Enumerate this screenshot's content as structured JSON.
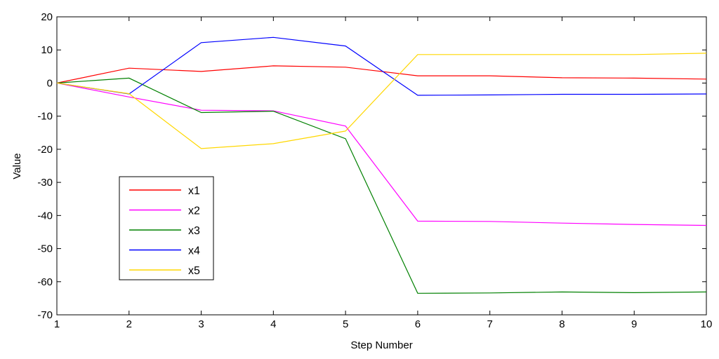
{
  "chart_data": {
    "type": "line",
    "xlabel": "Step Number",
    "ylabel": "Value",
    "xlim": [
      1,
      10
    ],
    "ylim": [
      -70,
      20
    ],
    "xticks": [
      1,
      2,
      3,
      4,
      5,
      6,
      7,
      8,
      9,
      10
    ],
    "yticks": [
      20,
      10,
      0,
      -10,
      -20,
      -30,
      -40,
      -50,
      -60,
      -70
    ],
    "grid": false,
    "legend_position": "lower-left",
    "series": [
      {
        "name": "x1",
        "color": "#ff0000",
        "x": [
          1,
          2,
          3,
          4,
          5,
          6,
          7,
          8,
          9,
          10
        ],
        "y": [
          0,
          4.5,
          3.5,
          5.2,
          4.8,
          2.2,
          2.2,
          1.6,
          1.5,
          1.2
        ]
      },
      {
        "name": "x2",
        "color": "#ff00ff",
        "x": [
          1,
          2,
          3,
          4,
          5,
          6,
          7,
          8,
          9,
          10
        ],
        "y": [
          0,
          -4.2,
          -8.2,
          -8.4,
          -13,
          -41.7,
          -41.8,
          -42.3,
          -42.7,
          -43
        ]
      },
      {
        "name": "x3",
        "color": "#008000",
        "x": [
          1,
          2,
          3,
          4,
          5,
          6,
          7,
          8,
          9,
          10
        ],
        "y": [
          0,
          1.5,
          -8.9,
          -8.5,
          -16.8,
          -63.5,
          -63.4,
          -63.1,
          -63.3,
          -63.1
        ]
      },
      {
        "name": "x4",
        "color": "#0000ff",
        "x": [
          1,
          2,
          3,
          4,
          5,
          6,
          7,
          8,
          9,
          10
        ],
        "y": [
          0,
          -3.3,
          12.2,
          13.8,
          11.2,
          -3.7,
          -3.6,
          -3.4,
          -3.4,
          -3.3
        ]
      },
      {
        "name": "x5",
        "color": "#ffd700",
        "x": [
          1,
          2,
          3,
          4,
          5,
          6,
          7,
          8,
          9,
          10
        ],
        "y": [
          0,
          -3.2,
          -19.8,
          -18.3,
          -14.5,
          8.6,
          8.6,
          8.6,
          8.6,
          9
        ]
      }
    ]
  }
}
